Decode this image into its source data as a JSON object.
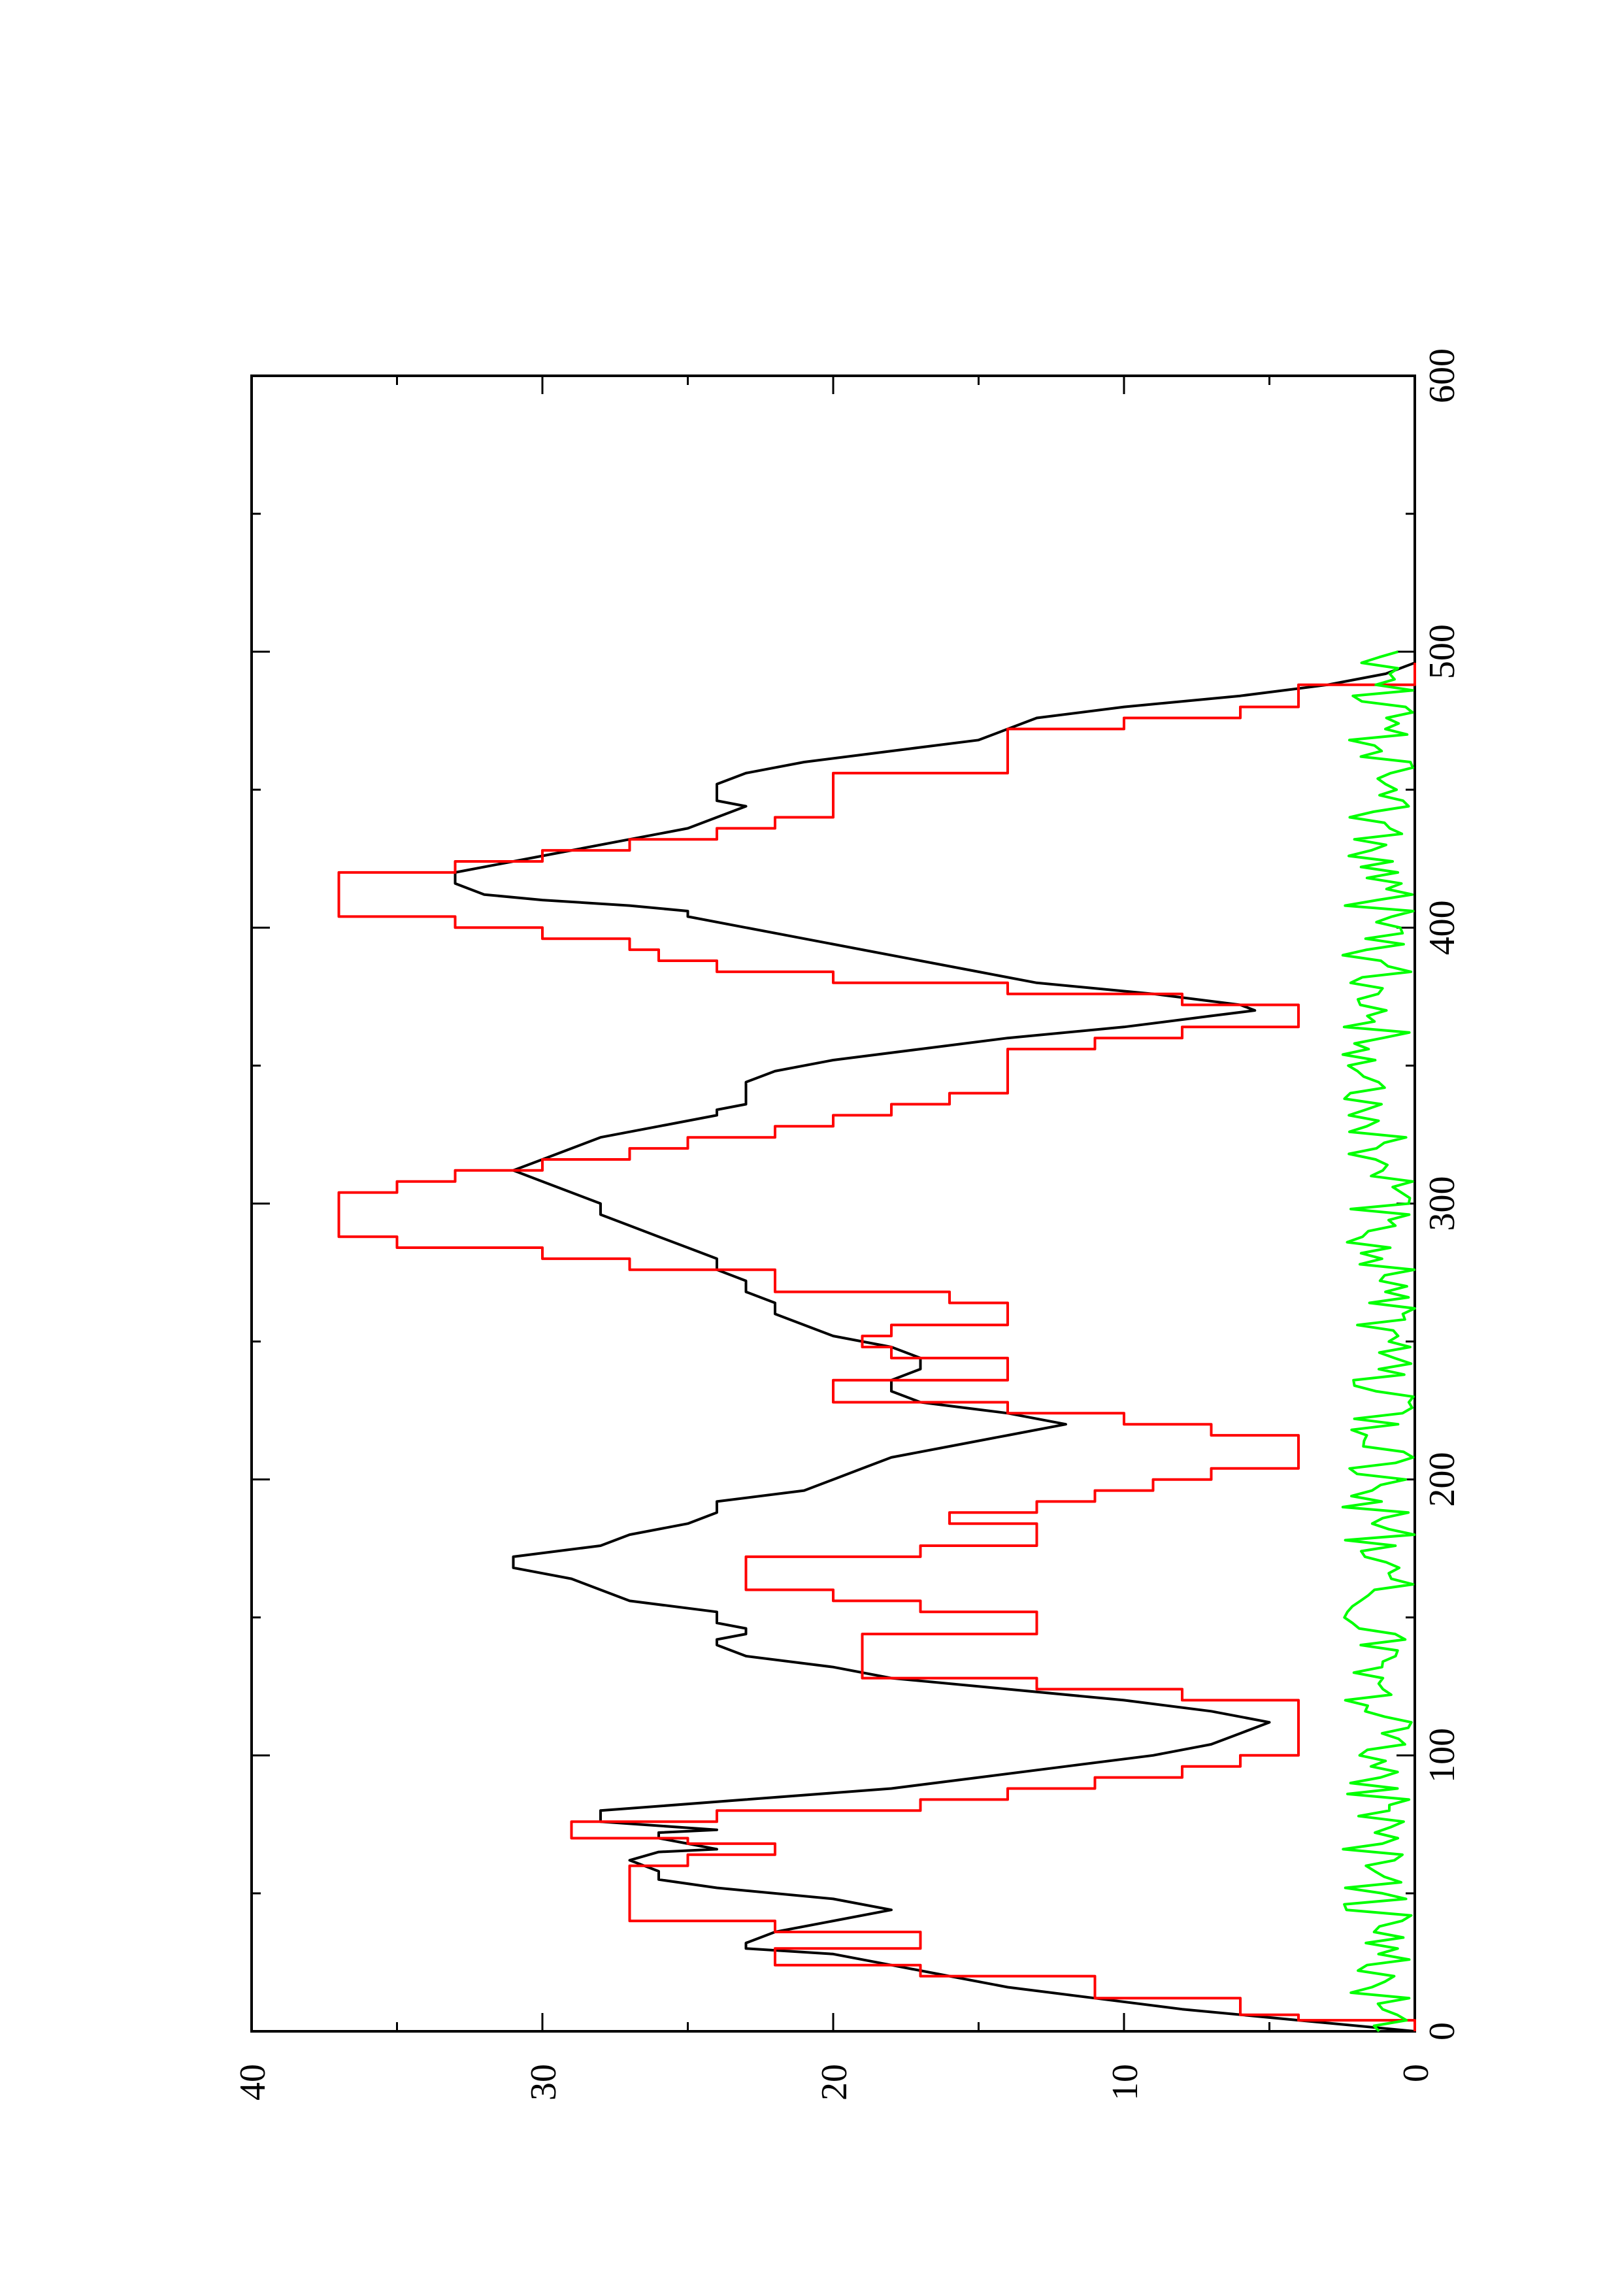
{
  "chart_data": {
    "type": "line",
    "orientation": "rotated-90-ccw",
    "title": "",
    "xlabel": "",
    "ylabel": "",
    "xlim": [
      0,
      600
    ],
    "ylim": [
      0,
      40
    ],
    "x_ticks": [
      "0",
      "100",
      "200",
      "300",
      "400",
      "500",
      "600"
    ],
    "y_ticks": [
      "0",
      "10",
      "20",
      "30",
      "40"
    ],
    "grid": false,
    "legend": "none",
    "series": [
      {
        "color": "#000000",
        "style": "line",
        "x": [
          0,
          4,
          8,
          12,
          16,
          20,
          24,
          28,
          30,
          32,
          36,
          40,
          44,
          48,
          52,
          55,
          58,
          62,
          65,
          66,
          68,
          70,
          72,
          73,
          76,
          77,
          80,
          84,
          88,
          92,
          96,
          100,
          104,
          108,
          112,
          116,
          120,
          124,
          128,
          132,
          136,
          140,
          142,
          144,
          146,
          148,
          150,
          152,
          156,
          160,
          164,
          168,
          172,
          176,
          180,
          184,
          188,
          192,
          196,
          200,
          204,
          208,
          212,
          216,
          220,
          224,
          228,
          232,
          236,
          240,
          244,
          248,
          252,
          256,
          260,
          264,
          268,
          272,
          276,
          280,
          284,
          288,
          292,
          296,
          300,
          304,
          308,
          312,
          316,
          320,
          324,
          328,
          332,
          334,
          336,
          340,
          344,
          348,
          352,
          356,
          360,
          364,
          368,
          370,
          372,
          376,
          380,
          384,
          388,
          392,
          396,
          400,
          404,
          406,
          408,
          410,
          412,
          416,
          420,
          424,
          428,
          432,
          436,
          440,
          444,
          446,
          448,
          452,
          456,
          460,
          464,
          468,
          472,
          476,
          480,
          484,
          488,
          492,
          496
        ],
        "y": [
          0,
          4,
          8,
          11,
          14,
          16,
          18,
          20,
          23,
          23,
          22,
          20,
          18,
          20,
          24,
          26,
          26,
          27,
          26,
          24,
          25,
          26,
          26,
          24,
          28,
          28,
          28,
          23,
          18,
          15,
          12,
          9,
          7,
          6,
          5,
          7,
          10,
          14,
          18,
          20,
          23,
          24,
          24,
          23,
          23,
          24,
          24,
          24,
          27,
          28,
          29,
          31,
          31,
          28,
          27,
          25,
          24,
          24,
          21,
          20,
          19,
          18,
          16,
          14,
          12,
          14,
          17,
          18,
          18,
          17,
          17,
          18,
          20,
          21,
          22,
          22,
          23,
          23,
          24,
          24,
          25,
          26,
          27,
          28,
          28,
          29,
          30,
          31,
          30,
          29,
          28,
          26,
          24,
          24,
          23,
          23,
          23,
          22,
          20,
          17,
          14,
          10,
          7,
          5.5,
          6,
          9,
          13,
          15,
          17,
          19,
          21,
          23,
          25,
          25,
          27,
          30,
          32,
          33,
          33,
          31,
          29,
          27,
          25,
          24,
          23,
          24,
          24,
          24,
          23,
          21,
          18,
          15,
          14,
          13,
          10,
          6,
          3,
          1,
          0
        ]
      },
      {
        "color": "#ff0000",
        "style": "steps",
        "x": [
          0,
          4,
          6,
          12,
          20,
          24,
          30,
          32,
          36,
          40,
          44,
          48,
          52,
          56,
          60,
          64,
          68,
          70,
          72,
          76,
          80,
          84,
          88,
          92,
          96,
          100,
          104,
          108,
          112,
          116,
          120,
          124,
          128,
          132,
          136,
          140,
          144,
          148,
          152,
          156,
          160,
          164,
          168,
          172,
          176,
          180,
          184,
          188,
          192,
          196,
          200,
          204,
          208,
          212,
          216,
          220,
          224,
          228,
          232,
          236,
          240,
          244,
          248,
          252,
          256,
          260,
          264,
          268,
          272,
          276,
          280,
          284,
          288,
          292,
          296,
          300,
          304,
          308,
          312,
          316,
          320,
          324,
          328,
          332,
          336,
          340,
          344,
          348,
          352,
          356,
          360,
          364,
          368,
          372,
          376,
          380,
          384,
          388,
          392,
          396,
          400,
          404,
          408,
          412,
          416,
          420,
          424,
          428,
          432,
          436,
          440,
          444,
          448,
          452,
          456,
          460,
          464,
          468,
          472,
          476,
          480,
          484,
          488,
          492,
          496
        ],
        "y": [
          0,
          4,
          6,
          11,
          17,
          22,
          17,
          17,
          22,
          27,
          27,
          27,
          27,
          27,
          25,
          22,
          25,
          29,
          29,
          24,
          17,
          14,
          11,
          8,
          6,
          4,
          4,
          4,
          4,
          4,
          8,
          13,
          19,
          19,
          19,
          19,
          13,
          13,
          17,
          20,
          23,
          23,
          23,
          17,
          13,
          13,
          16,
          13,
          11,
          9,
          7,
          4,
          4,
          4,
          7,
          10,
          14,
          20,
          20,
          14,
          14,
          18,
          19,
          18,
          14,
          14,
          16,
          22,
          22,
          27,
          30,
          35,
          37,
          37,
          37,
          37,
          35,
          33,
          30,
          27,
          25,
          22,
          20,
          18,
          16,
          14,
          14,
          14,
          14,
          11,
          8,
          4,
          4,
          8,
          14,
          20,
          24,
          26,
          27,
          30,
          33,
          37,
          37,
          37,
          37,
          33,
          30,
          27,
          24,
          22,
          20,
          20,
          20,
          20,
          14,
          14,
          14,
          14,
          10,
          6,
          4,
          4,
          0,
          0,
          0
        ]
      },
      {
        "color": "#00ff00",
        "style": "noise",
        "x_start": 0,
        "x_end": 500,
        "x_step": 2,
        "amplitude": 2.5
      }
    ]
  }
}
